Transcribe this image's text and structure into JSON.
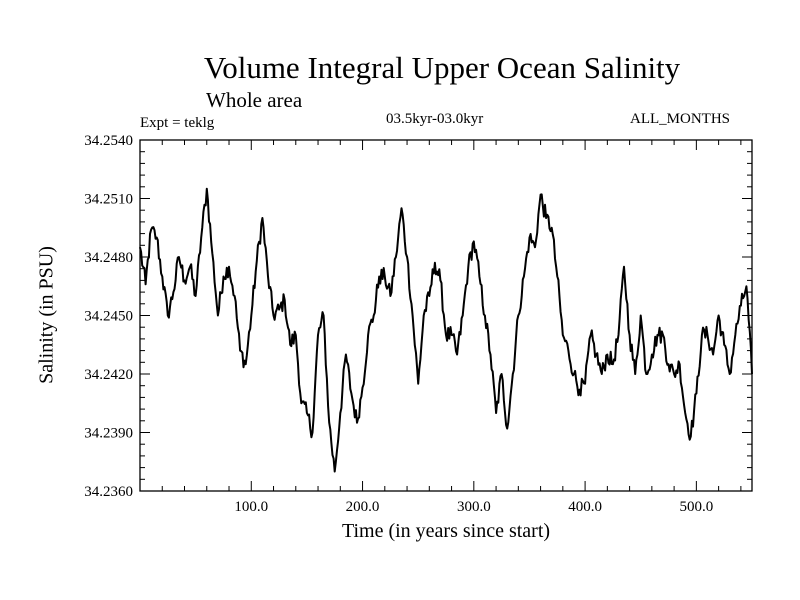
{
  "chart_data": {
    "type": "line",
    "title": "Volume Integral Upper Ocean Salinity",
    "subtitle": "Whole area",
    "expt_label": "Expt = teklg",
    "period_label": "03.5kyr-03.0kyr",
    "months_label": "ALL_MONTHS",
    "xlabel": "Time (in years since start)",
    "ylabel": "Salinity (in PSU)",
    "xlim": [
      0,
      550
    ],
    "ylim": [
      34.236,
      34.254
    ],
    "xticks": [
      100,
      200,
      300,
      400,
      500
    ],
    "xtick_labels": [
      "100.0",
      "200.0",
      "300.0",
      "400.0",
      "500.0"
    ],
    "yticks": [
      34.236,
      34.239,
      34.242,
      34.245,
      34.248,
      34.251,
      34.254
    ],
    "ytick_labels": [
      "34.2360",
      "34.2390",
      "34.2420",
      "34.2450",
      "34.2480",
      "34.2510",
      "34.2540"
    ],
    "series": [
      {
        "name": "Salinity",
        "x": [
          0,
          5,
          10,
          15,
          20,
          25,
          30,
          35,
          40,
          45,
          50,
          55,
          60,
          65,
          70,
          75,
          80,
          85,
          90,
          95,
          100,
          105,
          110,
          115,
          120,
          125,
          130,
          135,
          140,
          145,
          150,
          155,
          160,
          165,
          170,
          175,
          180,
          185,
          190,
          195,
          200,
          205,
          210,
          215,
          220,
          225,
          230,
          235,
          240,
          245,
          250,
          255,
          260,
          265,
          270,
          275,
          280,
          285,
          290,
          295,
          300,
          305,
          310,
          315,
          320,
          325,
          330,
          335,
          340,
          345,
          350,
          355,
          360,
          365,
          370,
          375,
          380,
          385,
          390,
          395,
          400,
          405,
          410,
          415,
          420,
          425,
          430,
          435,
          440,
          445,
          450,
          455,
          460,
          465,
          470,
          475,
          480,
          485,
          490,
          495,
          500,
          505,
          510,
          515,
          520,
          525,
          530,
          535,
          540,
          545,
          550
        ],
        "values": [
          34.2485,
          34.2466,
          34.2494,
          34.249,
          34.247,
          34.245,
          34.2462,
          34.248,
          34.2468,
          34.2475,
          34.246,
          34.249,
          34.2515,
          34.2482,
          34.245,
          34.247,
          34.2475,
          34.246,
          34.2432,
          34.2425,
          34.245,
          34.2478,
          34.25,
          34.247,
          34.245,
          34.2453,
          34.2458,
          34.2435,
          34.244,
          34.2405,
          34.24,
          34.239,
          34.244,
          34.245,
          34.2395,
          34.237,
          34.24,
          34.243,
          34.241,
          34.2395,
          34.2413,
          34.244,
          34.245,
          34.247,
          34.247,
          34.246,
          34.248,
          34.2505,
          34.248,
          34.245,
          34.2415,
          34.245,
          34.246,
          34.2477,
          34.2468,
          34.244,
          34.244,
          34.243,
          34.245,
          34.2475,
          34.2488,
          34.247,
          34.245,
          34.243,
          34.24,
          34.242,
          34.2392,
          34.242,
          34.245,
          34.247,
          34.249,
          34.2485,
          34.2512,
          34.25,
          34.2495,
          34.247,
          34.244,
          34.2432,
          34.242,
          34.2412,
          34.2415,
          34.244,
          34.243,
          34.242,
          34.243,
          34.2425,
          34.244,
          34.2475,
          34.244,
          34.242,
          34.245,
          34.242,
          34.243,
          34.244,
          34.244,
          34.2425,
          34.242,
          34.2425,
          34.24,
          34.2388,
          34.241,
          34.244,
          34.244,
          34.243,
          34.245,
          34.2435,
          34.242,
          34.244,
          34.2455,
          34.2465,
          34.242
        ]
      }
    ]
  }
}
